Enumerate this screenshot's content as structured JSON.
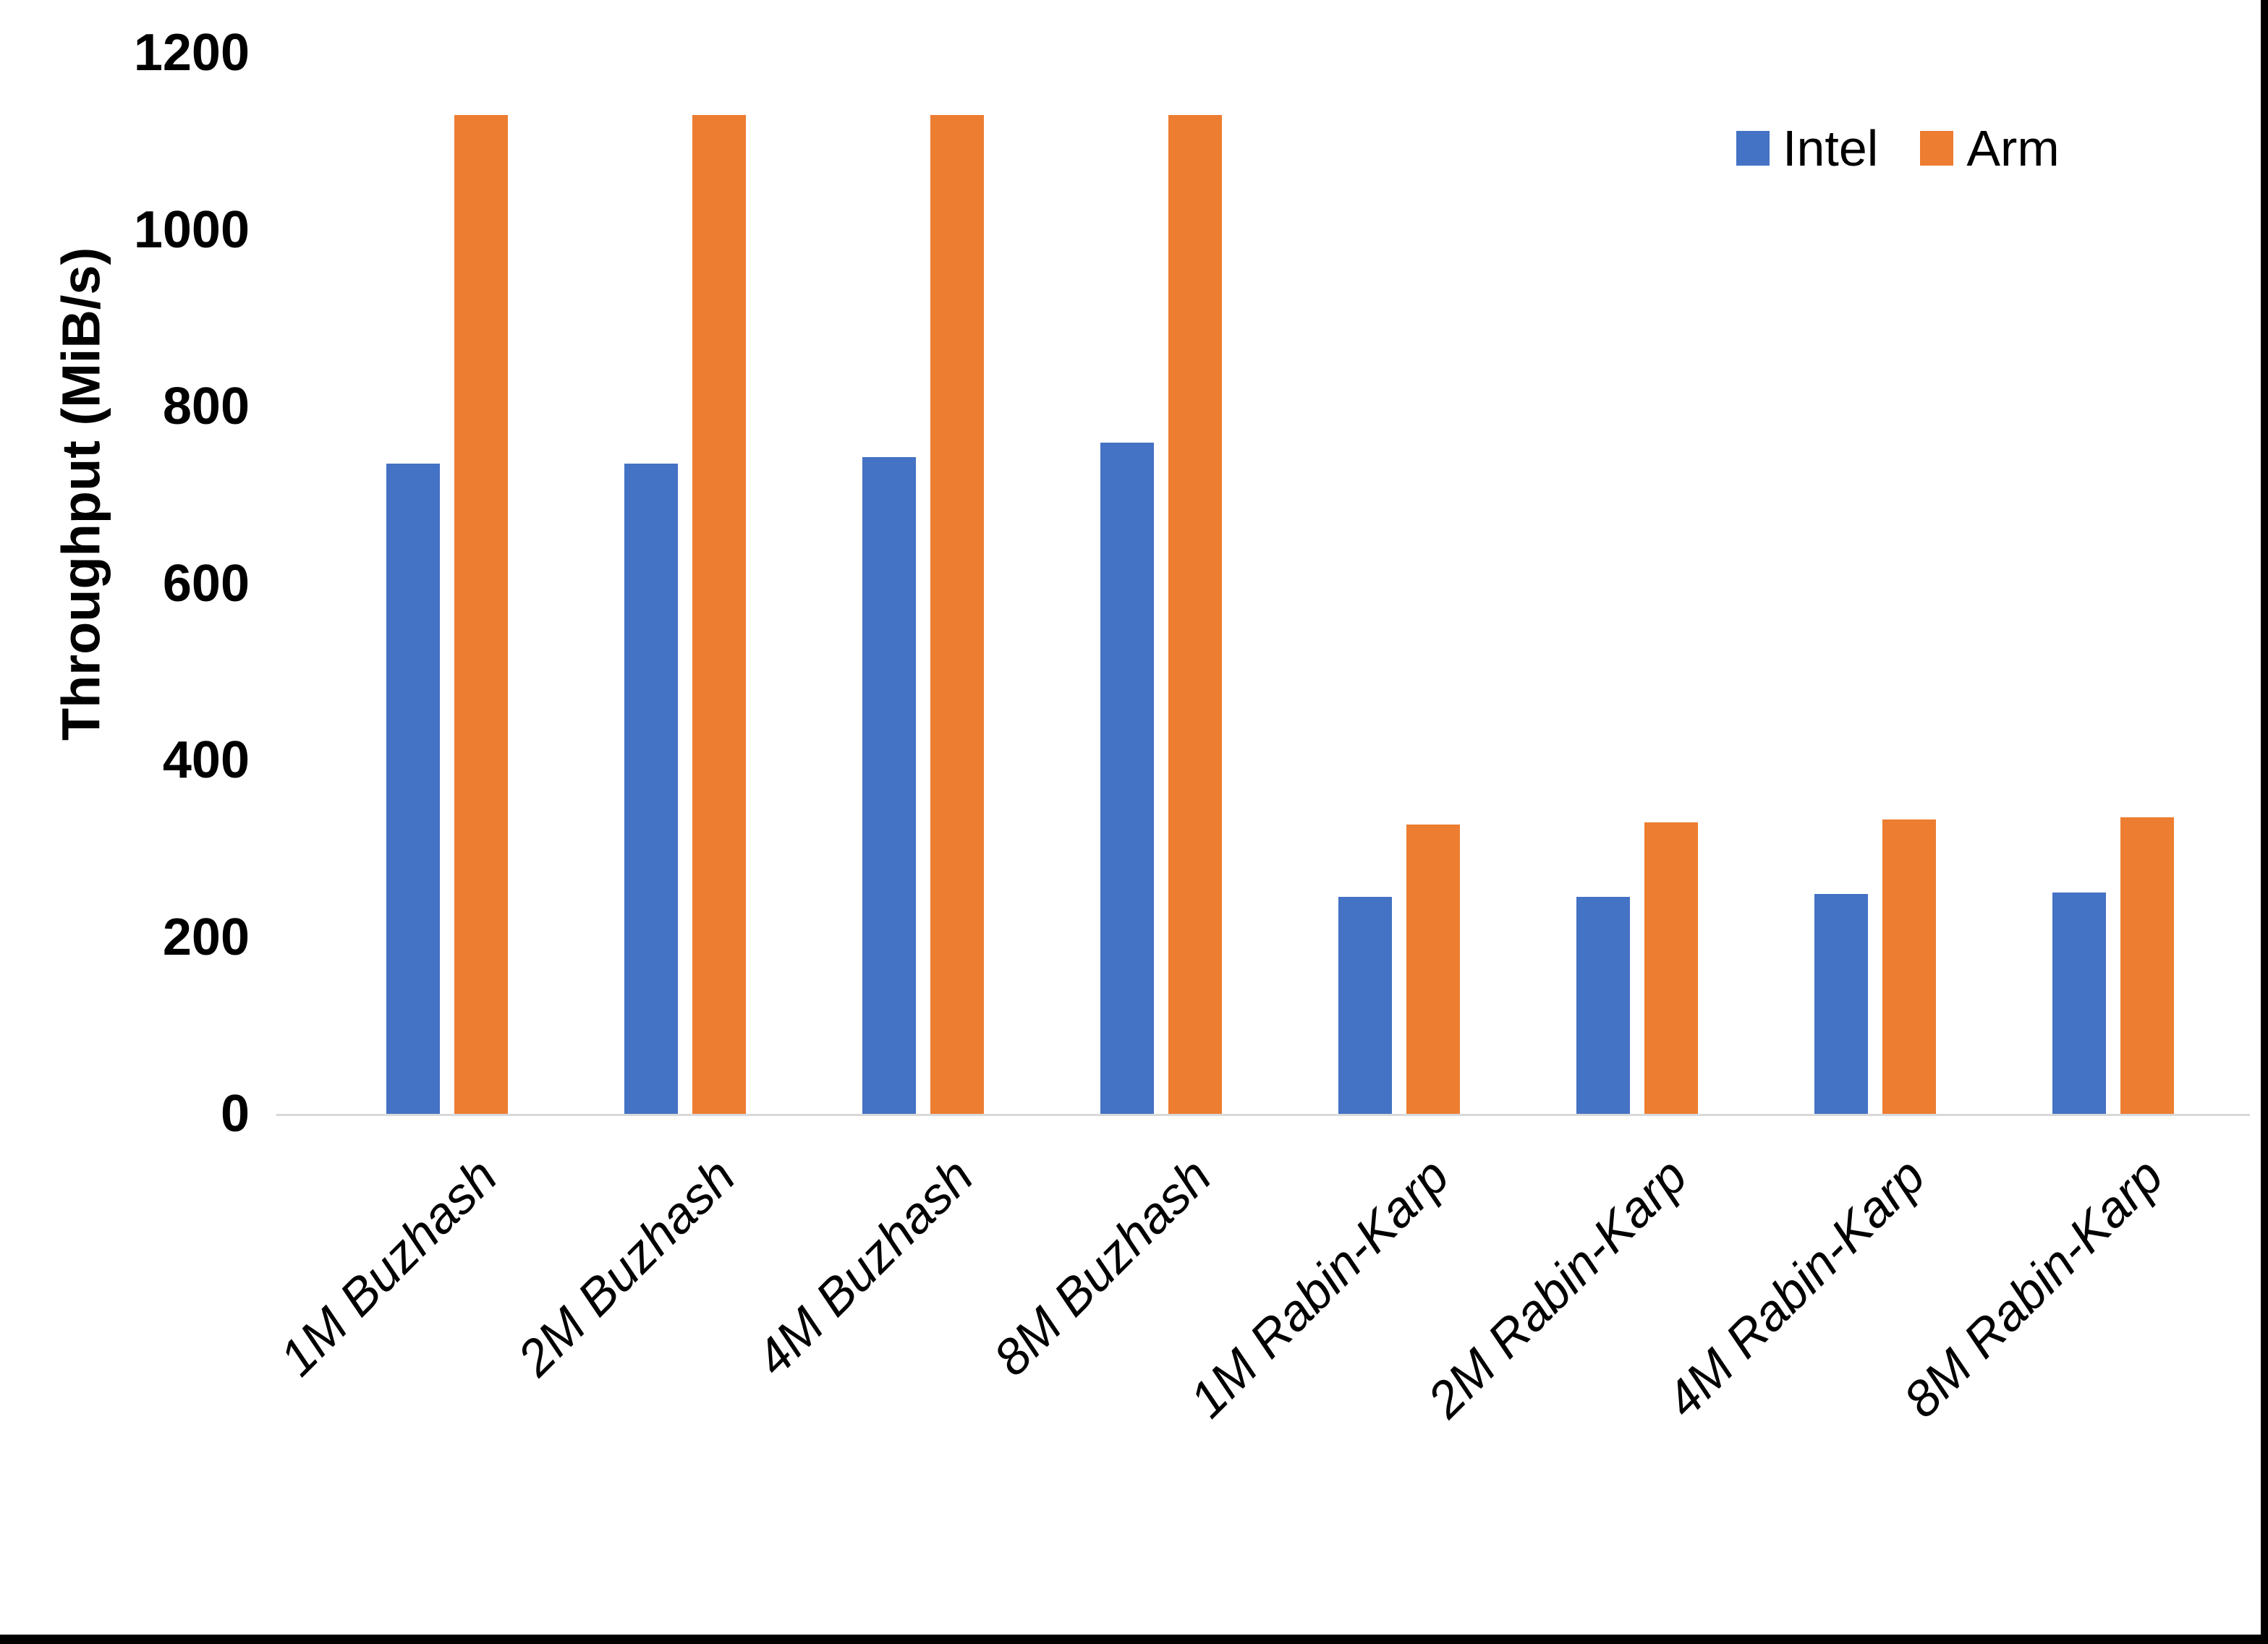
{
  "chart_data": {
    "type": "bar",
    "title": "",
    "xlabel": "",
    "ylabel": "Throughput (MiB/s)",
    "ylim": [
      0,
      1200
    ],
    "y_ticks": [
      0,
      200,
      400,
      600,
      800,
      1000,
      1200
    ],
    "grid": false,
    "legend_position": "top-right",
    "categories": [
      "1M Buzhash",
      "2M Buzhash",
      "4M Buzhash",
      "8M Buzhash",
      "1M Rabin-Karp",
      "2M Rabin-Karp",
      "4M Rabin-Karp",
      "8M Rabin-Karp"
    ],
    "series": [
      {
        "name": "Intel",
        "color": "#4472C4",
        "values": [
          735,
          735,
          743,
          759,
          245,
          245,
          249,
          250
        ]
      },
      {
        "name": "Arm",
        "color": "#ED7D31",
        "values": [
          1130,
          1130,
          1130,
          1130,
          327,
          330,
          333,
          335
        ]
      }
    ],
    "axis_line_color": "#D9D9D9"
  }
}
